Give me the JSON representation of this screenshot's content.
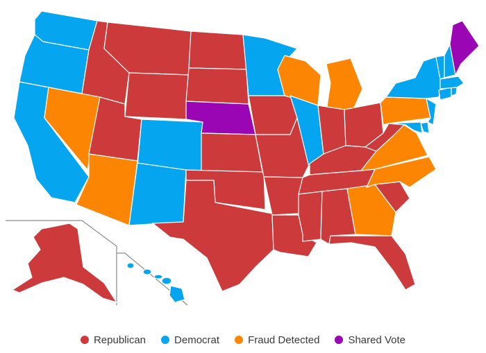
{
  "colors": {
    "republican": "#cc3a3c",
    "democrat": "#06a5ef",
    "fraud": "#fc8503",
    "shared": "#9a06b3"
  },
  "legend": [
    {
      "key": "republican",
      "label": "Republican",
      "color": "#cc3a3c"
    },
    {
      "key": "democrat",
      "label": "Democrat",
      "color": "#06a5ef"
    },
    {
      "key": "fraud",
      "label": "Fraud Detected",
      "color": "#fc8503"
    },
    {
      "key": "shared",
      "label": "Shared Vote",
      "color": "#9a06b3"
    }
  ],
  "states": {
    "washington": "democrat",
    "oregon": "democrat",
    "california": "democrat",
    "idaho": "republican",
    "montana": "republican",
    "wyoming": "republican",
    "nevada": "fraud",
    "utah": "republican",
    "colorado": "democrat",
    "arizona": "fraud",
    "new-mexico": "democrat",
    "north-dakota": "republican",
    "south-dakota": "republican",
    "nebraska": "shared",
    "kansas": "republican",
    "oklahoma": "republican",
    "texas": "republican",
    "minnesota": "democrat",
    "iowa": "republican",
    "missouri": "republican",
    "arkansas": "republican",
    "louisiana": "republican",
    "wisconsin": "fraud",
    "illinois": "democrat",
    "michigan": "fraud",
    "indiana": "republican",
    "ohio": "republican",
    "kentucky": "republican",
    "tennessee": "republican",
    "mississippi": "republican",
    "alabama": "republican",
    "georgia": "fraud",
    "florida": "republican",
    "south-carolina": "republican",
    "north-carolina": "fraud",
    "virginia": "fraud",
    "west-virginia": "republican",
    "pennsylvania": "fraud",
    "new-york": "democrat",
    "new-jersey": "democrat",
    "delaware": "democrat",
    "maryland": "democrat",
    "connecticut": "democrat",
    "rhode-island": "democrat",
    "massachusetts": "democrat",
    "vermont": "democrat",
    "new-hampshire": "democrat",
    "maine": "shared",
    "alaska": "republican",
    "hawaii": "democrat"
  }
}
